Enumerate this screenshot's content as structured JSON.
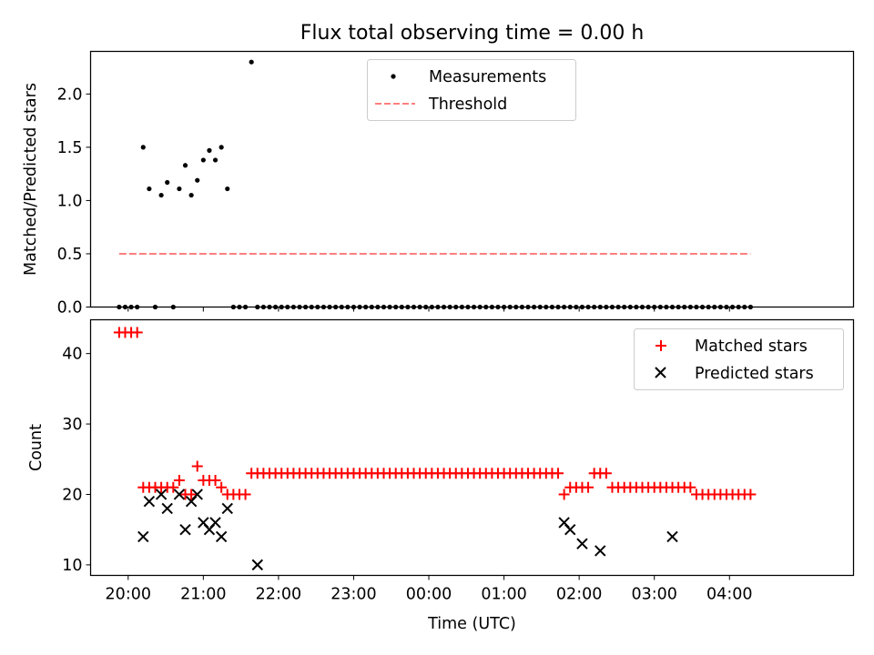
{
  "title": "Flux total observing time = 0.00 h",
  "chart_data": [
    {
      "type": "scatter",
      "ylabel": "Matched/Predicted stars",
      "xlim": [
        -0.5,
        9.65
      ],
      "ylim": [
        0,
        2.4
      ],
      "xticks": [
        0,
        1,
        2,
        3,
        4,
        5,
        6,
        7,
        8
      ],
      "yticks": [
        "0.0",
        "0.5",
        "1.0",
        "1.5",
        "2.0"
      ],
      "legend_position": "top-center",
      "legend": [
        "Measurements",
        "Threshold"
      ],
      "series": [
        {
          "name": "Measurements",
          "marker": "dot",
          "color": "#000000",
          "x": [
            -0.12,
            -0.04,
            0.04,
            0.12,
            0.2,
            0.28,
            0.36,
            0.44,
            0.52,
            0.6,
            0.68,
            0.76,
            0.84,
            0.92,
            1.0,
            1.08,
            1.16,
            1.24,
            1.32,
            1.4,
            1.48,
            1.56,
            1.64,
            1.72,
            1.8,
            1.88,
            1.96,
            2.04,
            2.12,
            2.2,
            2.28,
            2.36,
            2.44,
            2.52,
            2.6,
            2.68,
            2.76,
            2.84,
            2.92,
            3.0,
            3.08,
            3.16,
            3.24,
            3.32,
            3.4,
            3.48,
            3.56,
            3.64,
            3.72,
            3.8,
            3.88,
            3.96,
            4.04,
            4.12,
            4.2,
            4.28,
            4.36,
            4.44,
            4.52,
            4.6,
            4.68,
            4.76,
            4.84,
            4.92,
            5.0,
            5.08,
            5.16,
            5.24,
            5.32,
            5.4,
            5.48,
            5.56,
            5.64,
            5.72,
            5.8,
            5.88,
            5.96,
            6.04,
            6.12,
            6.2,
            6.28,
            6.36,
            6.44,
            6.52,
            6.6,
            6.68,
            6.76,
            6.84,
            6.92,
            7.0,
            7.08,
            7.16,
            7.24,
            7.32,
            7.4,
            7.48,
            7.56,
            7.64,
            7.72,
            7.8,
            7.88,
            7.96,
            8.04,
            8.12,
            8.2,
            8.28
          ],
          "y": [
            0,
            0,
            0,
            0,
            1.5,
            1.11,
            0,
            1.05,
            1.17,
            0,
            1.11,
            1.33,
            1.05,
            1.19,
            1.38,
            1.47,
            1.38,
            1.5,
            1.11,
            0,
            0,
            0,
            2.3,
            0,
            0,
            0,
            0,
            0,
            0,
            0,
            0,
            0,
            0,
            0,
            0,
            0,
            0,
            0,
            0,
            0,
            0,
            0,
            0,
            0,
            0,
            0,
            0,
            0,
            0,
            0,
            0,
            0,
            0,
            0,
            0,
            0,
            0,
            0,
            0,
            0,
            0,
            0,
            0,
            0,
            0,
            0,
            0,
            0,
            0,
            0,
            0,
            0,
            0,
            0,
            0,
            0,
            0,
            0,
            0,
            0,
            0,
            0,
            0,
            0,
            0,
            0,
            0,
            0,
            0,
            0,
            0,
            0,
            0,
            0,
            0,
            0,
            0,
            0,
            0,
            0,
            0,
            0,
            0,
            0,
            0,
            0
          ]
        },
        {
          "name": "Threshold",
          "style": "dashed",
          "color": "#ff7f7f",
          "x": [
            -0.12,
            8.28
          ],
          "y": [
            0.5,
            0.5
          ]
        }
      ]
    },
    {
      "type": "scatter",
      "xlabel": "Time (UTC)",
      "ylabel": "Count",
      "xlim": [
        -0.5,
        9.65
      ],
      "ylim": [
        8.5,
        44.8
      ],
      "xticks": [
        "20:00",
        "21:00",
        "22:00",
        "23:00",
        "00:00",
        "01:00",
        "02:00",
        "03:00",
        "04:00"
      ],
      "yticks": [
        "10",
        "20",
        "30",
        "40"
      ],
      "legend_position": "top-right",
      "legend": [
        "Matched stars",
        "Predicted stars"
      ],
      "series": [
        {
          "name": "Matched stars",
          "marker": "plus",
          "color": "#ff0000",
          "x": [
            -0.12,
            -0.04,
            0.04,
            0.12,
            0.2,
            0.28,
            0.36,
            0.44,
            0.52,
            0.6,
            0.68,
            0.76,
            0.84,
            0.92,
            1.0,
            1.08,
            1.16,
            1.24,
            1.32,
            1.4,
            1.48,
            1.56,
            1.64,
            1.72,
            1.8,
            1.88,
            1.96,
            2.04,
            2.12,
            2.2,
            2.28,
            2.36,
            2.44,
            2.52,
            2.6,
            2.68,
            2.76,
            2.84,
            2.92,
            3.0,
            3.08,
            3.16,
            3.24,
            3.32,
            3.4,
            3.48,
            3.56,
            3.64,
            3.72,
            3.8,
            3.88,
            3.96,
            4.04,
            4.12,
            4.2,
            4.28,
            4.36,
            4.44,
            4.52,
            4.6,
            4.68,
            4.76,
            4.84,
            4.92,
            5.0,
            5.08,
            5.16,
            5.24,
            5.32,
            5.4,
            5.48,
            5.56,
            5.64,
            5.72,
            5.8,
            5.88,
            5.96,
            6.04,
            6.12,
            6.2,
            6.28,
            6.36,
            6.44,
            6.52,
            6.6,
            6.68,
            6.76,
            6.84,
            6.92,
            7.0,
            7.08,
            7.16,
            7.24,
            7.32,
            7.4,
            7.48,
            7.56,
            7.64,
            7.72,
            7.8,
            7.88,
            7.96,
            8.04,
            8.12,
            8.2,
            8.28
          ],
          "y": [
            43,
            43,
            43,
            43,
            21,
            21,
            21,
            21,
            21,
            21,
            22,
            20,
            20,
            24,
            22,
            22,
            22,
            21,
            20,
            20,
            20,
            20,
            23,
            23,
            23,
            23,
            23,
            23,
            23,
            23,
            23,
            23,
            23,
            23,
            23,
            23,
            23,
            23,
            23,
            23,
            23,
            23,
            23,
            23,
            23,
            23,
            23,
            23,
            23,
            23,
            23,
            23,
            23,
            23,
            23,
            23,
            23,
            23,
            23,
            23,
            23,
            23,
            23,
            23,
            23,
            23,
            23,
            23,
            23,
            23,
            23,
            23,
            23,
            23,
            20,
            21,
            21,
            21,
            21,
            23,
            23,
            23,
            21,
            21,
            21,
            21,
            21,
            21,
            21,
            21,
            21,
            21,
            21,
            21,
            21,
            21,
            20,
            20,
            20,
            20,
            20,
            20,
            20,
            20,
            20,
            20
          ]
        },
        {
          "name": "Predicted stars",
          "marker": "x",
          "color": "#000000",
          "x": [
            0.2,
            0.28,
            0.44,
            0.52,
            0.68,
            0.76,
            0.84,
            0.92,
            1.0,
            1.08,
            1.16,
            1.24,
            1.32,
            1.72,
            5.8,
            5.88,
            6.04,
            6.28,
            7.24
          ],
          "y": [
            14,
            19,
            20,
            18,
            20,
            15,
            19,
            20,
            16,
            15,
            16,
            14,
            18,
            10,
            16,
            15,
            13,
            12,
            14
          ]
        }
      ]
    }
  ]
}
